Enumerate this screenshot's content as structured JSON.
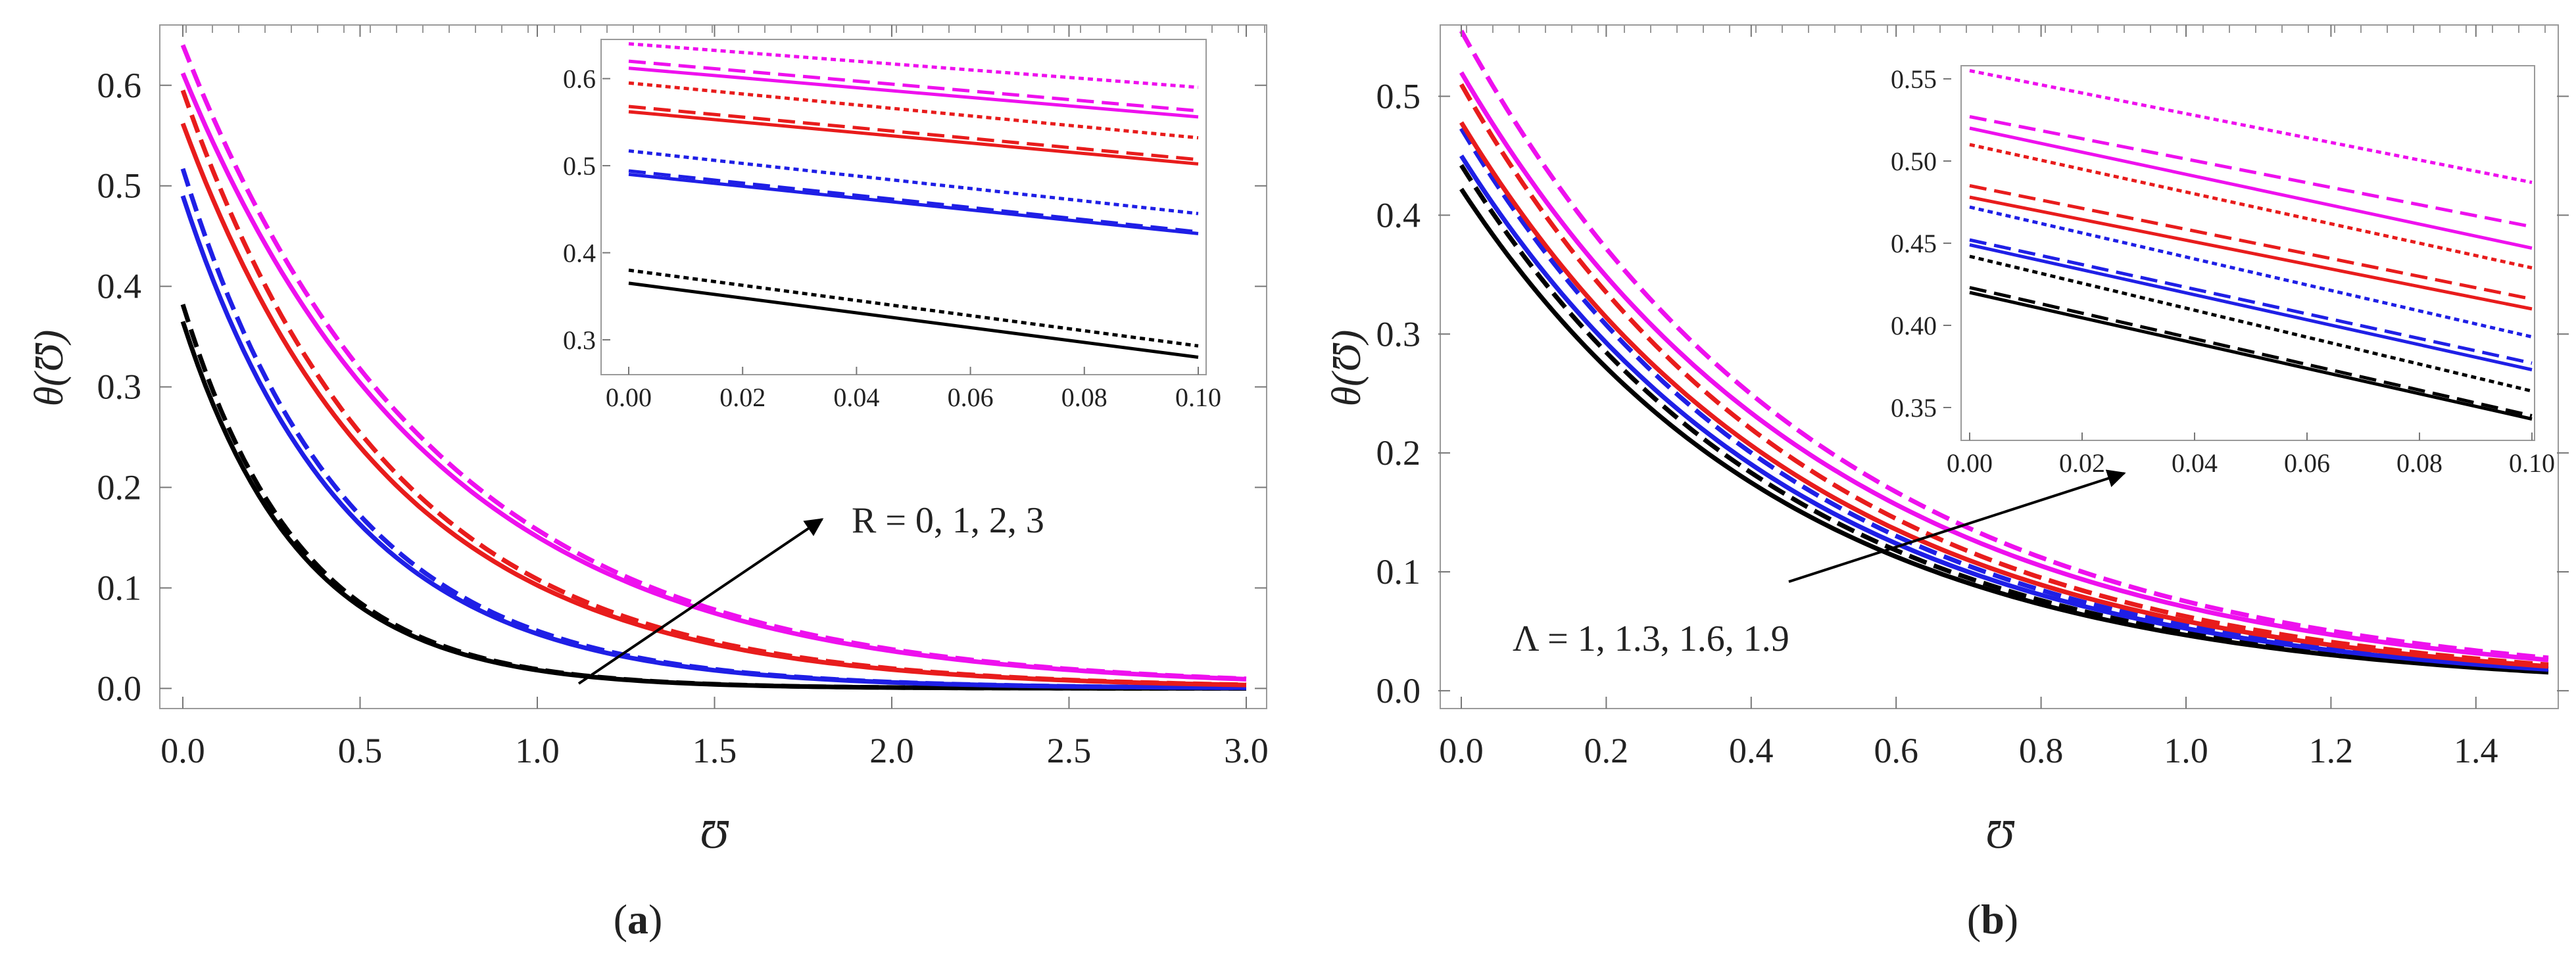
{
  "colors": {
    "black": "#000000",
    "blue": "#1f1fe6",
    "red": "#e81c1c",
    "magenta": "#ee10ee",
    "frame": "#9a9a9a"
  },
  "chart_data": [
    {
      "type": "line",
      "panel_label": "(a)",
      "panel_letter": "a",
      "xlabel": "Ʊ",
      "ylabel": "θ(Ʊ)",
      "xlim": [
        0,
        3.0
      ],
      "ylim": [
        -0.02,
        0.66
      ],
      "xticks": [
        "0.0",
        "0.5",
        "1.0",
        "1.5",
        "2.0",
        "2.5",
        "3.0"
      ],
      "yticks": [
        "0.0",
        "0.1",
        "0.2",
        "0.3",
        "0.4",
        "0.5",
        "0.6"
      ],
      "annotation": "R = 0, 1, 2, 3",
      "series": [
        {
          "name": "R = 0 (solid)",
          "color": "black",
          "style": "solid",
          "theta0": 0.365,
          "decay": 3.0
        },
        {
          "name": "R = 0 (dashed)",
          "color": "black",
          "style": "dashed",
          "theta0": 0.382,
          "decay": 3.0
        },
        {
          "name": "R = 1 (solid)",
          "color": "blue",
          "style": "solid",
          "theta0": 0.49,
          "decay": 2.2
        },
        {
          "name": "R = 1 (dashed)",
          "color": "blue",
          "style": "dashed",
          "theta0": 0.517,
          "decay": 2.2
        },
        {
          "name": "R = 2 (solid)",
          "color": "red",
          "style": "solid",
          "theta0": 0.562,
          "decay": 1.7
        },
        {
          "name": "R = 2 (dashed)",
          "color": "red",
          "style": "dashed",
          "theta0": 0.595,
          "decay": 1.7
        },
        {
          "name": "R = 3 (solid)",
          "color": "magenta",
          "style": "solid",
          "theta0": 0.612,
          "decay": 1.4
        },
        {
          "name": "R = 3 (dashed)",
          "color": "magenta",
          "style": "dashed",
          "theta0": 0.64,
          "decay": 1.4
        }
      ],
      "inset": {
        "xlim": [
          0,
          0.1
        ],
        "ylim": [
          0.26,
          0.645
        ],
        "xticks": [
          "0.00",
          "0.02",
          "0.04",
          "0.06",
          "0.08",
          "0.10"
        ],
        "yticks": [
          "0.3",
          "0.4",
          "0.5",
          "0.6"
        ],
        "series": [
          {
            "color": "black",
            "style": "solid",
            "y": [
              0.365,
              0.28
            ]
          },
          {
            "color": "black",
            "style": "dotted",
            "y": [
              0.38,
              0.293
            ]
          },
          {
            "color": "blue",
            "style": "solid",
            "y": [
              0.49,
              0.422
            ]
          },
          {
            "color": "blue",
            "style": "dashed",
            "y": [
              0.494,
              0.424
            ]
          },
          {
            "color": "blue",
            "style": "dotted",
            "y": [
              0.517,
              0.445
            ]
          },
          {
            "color": "red",
            "style": "solid",
            "y": [
              0.562,
              0.502
            ]
          },
          {
            "color": "red",
            "style": "dashed",
            "y": [
              0.568,
              0.507
            ]
          },
          {
            "color": "red",
            "style": "dotted",
            "y": [
              0.595,
              0.532
            ]
          },
          {
            "color": "magenta",
            "style": "solid",
            "y": [
              0.612,
              0.556
            ]
          },
          {
            "color": "magenta",
            "style": "dashed",
            "y": [
              0.62,
              0.563
            ]
          },
          {
            "color": "magenta",
            "style": "dotted",
            "y": [
              0.64,
              0.59
            ]
          }
        ]
      }
    },
    {
      "type": "line",
      "panel_label": "(b)",
      "panel_letter": "b",
      "xlabel": "Ʊ",
      "ylabel": "θ(Ʊ)",
      "xlim": [
        0,
        1.5
      ],
      "ylim": [
        -0.015,
        0.56
      ],
      "xticks": [
        "0.0",
        "0.2",
        "0.4",
        "0.6",
        "0.8",
        "1.0",
        "1.2",
        "1.4"
      ],
      "yticks": [
        "0.0",
        "0.1",
        "0.2",
        "0.3",
        "0.4",
        "0.5"
      ],
      "annotation": "Λ = 1, 1.3, 1.6, 1.9",
      "series": [
        {
          "name": "Λ = 1 (solid)",
          "color": "black",
          "style": "solid",
          "theta0": 0.422,
          "decay": 2.2
        },
        {
          "name": "Λ = 1 (dashed)",
          "color": "black",
          "style": "dashed",
          "theta0": 0.442,
          "decay": 2.2
        },
        {
          "name": "Λ = 1.3 (solid)",
          "color": "blue",
          "style": "solid",
          "theta0": 0.45,
          "decay": 2.15
        },
        {
          "name": "Λ = 1.3 (dashed)",
          "color": "blue",
          "style": "dashed",
          "theta0": 0.473,
          "decay": 2.15
        },
        {
          "name": "Λ = 1.6 (solid)",
          "color": "red",
          "style": "solid",
          "theta0": 0.478,
          "decay": 2.1
        },
        {
          "name": "Λ = 1.6 (dashed)",
          "color": "red",
          "style": "dashed",
          "theta0": 0.51,
          "decay": 2.1
        },
        {
          "name": "Λ = 1.9 (solid)",
          "color": "magenta",
          "style": "solid",
          "theta0": 0.52,
          "decay": 2.0
        },
        {
          "name": "Λ = 1.9 (dashed)",
          "color": "magenta",
          "style": "dashed",
          "theta0": 0.555,
          "decay": 2.0
        }
      ],
      "inset": {
        "xlim": [
          0,
          0.1
        ],
        "ylim": [
          0.33,
          0.558
        ],
        "xticks": [
          "0.00",
          "0.02",
          "0.04",
          "0.06",
          "0.08",
          "0.10"
        ],
        "yticks": [
          "0.35",
          "0.40",
          "0.45",
          "0.50",
          "0.55"
        ],
        "series": [
          {
            "color": "black",
            "style": "solid",
            "y": [
              0.42,
              0.343
            ]
          },
          {
            "color": "black",
            "style": "dashed",
            "y": [
              0.423,
              0.345
            ]
          },
          {
            "color": "black",
            "style": "dotted",
            "y": [
              0.442,
              0.36
            ]
          },
          {
            "color": "blue",
            "style": "solid",
            "y": [
              0.449,
              0.373
            ]
          },
          {
            "color": "blue",
            "style": "dashed",
            "y": [
              0.452,
              0.377
            ]
          },
          {
            "color": "blue",
            "style": "dotted",
            "y": [
              0.472,
              0.393
            ]
          },
          {
            "color": "red",
            "style": "solid",
            "y": [
              0.478,
              0.41
            ]
          },
          {
            "color": "red",
            "style": "dashed",
            "y": [
              0.485,
              0.416
            ]
          },
          {
            "color": "red",
            "style": "dotted",
            "y": [
              0.51,
              0.435
            ]
          },
          {
            "color": "magenta",
            "style": "solid",
            "y": [
              0.52,
              0.447
            ]
          },
          {
            "color": "magenta",
            "style": "dashed",
            "y": [
              0.527,
              0.46
            ]
          },
          {
            "color": "magenta",
            "style": "dotted",
            "y": [
              0.555,
              0.487
            ]
          }
        ]
      }
    }
  ]
}
